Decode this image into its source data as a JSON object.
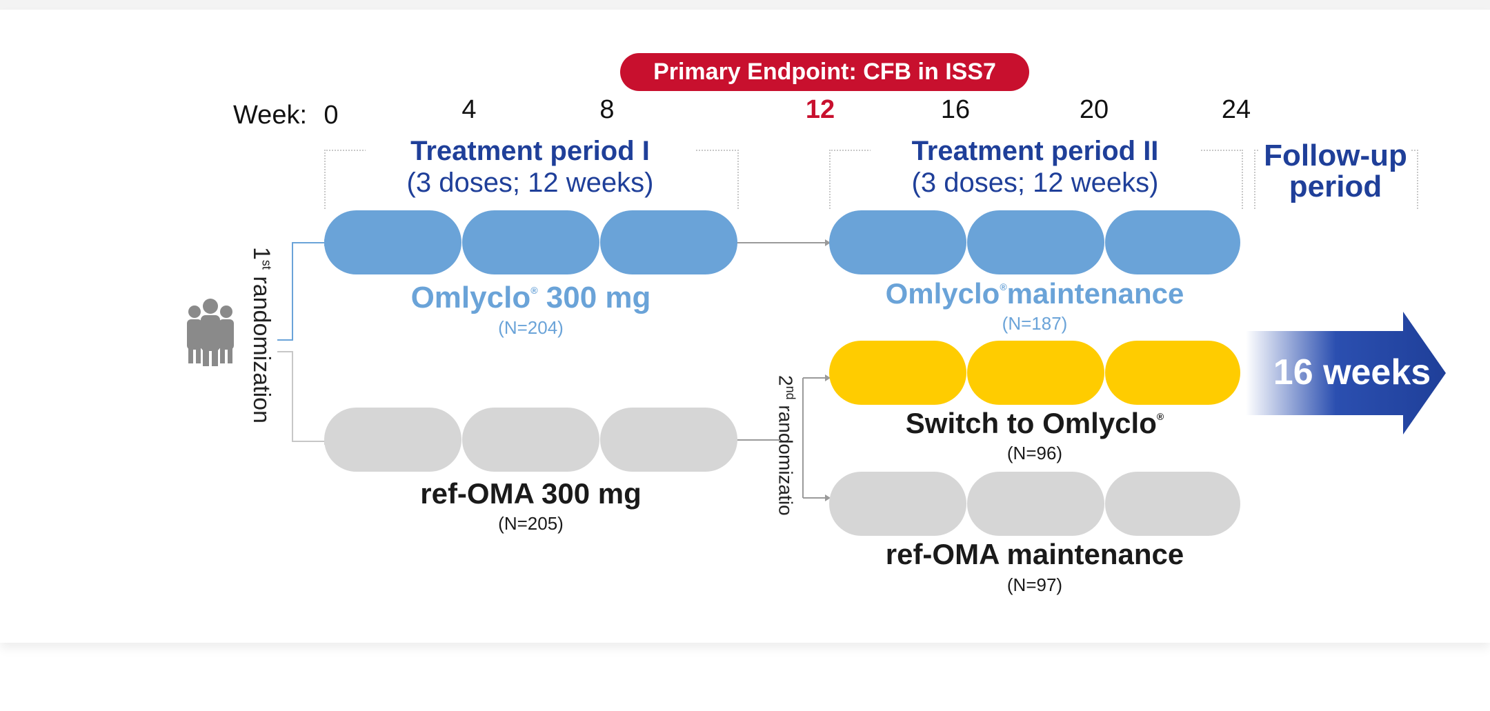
{
  "endpoint": {
    "label": "Primary Endpoint: CFB in ISS7"
  },
  "timeline": {
    "week_label": "Week:",
    "weeks": [
      "0",
      "4",
      "8",
      "12",
      "16",
      "20",
      "24"
    ]
  },
  "periods": {
    "p1": {
      "title": "Treatment period I",
      "sub": "(3 doses; 12 weeks)"
    },
    "p2": {
      "title": "Treatment period II",
      "sub": "(3 doses; 12 weeks)"
    },
    "followup": {
      "line1": "Follow-up",
      "line2": "period"
    }
  },
  "randomization": {
    "first": {
      "ordinal": "1",
      "sup": "st",
      "word": "randomization"
    },
    "second": {
      "ordinal": "2",
      "sup": "nd",
      "word": "randomizatio"
    }
  },
  "arms": {
    "omlyclo300": {
      "brand": "Omlyclo",
      "reg": "®",
      "dose": "300 mg",
      "n": "(N=204)"
    },
    "refoma300": {
      "name": "ref-OMA 300 mg",
      "n": "(N=205)"
    },
    "omlyclo_maint": {
      "brand": "Omlyclo",
      "reg": "®",
      "rest": "maintenance",
      "n": "(N=187)"
    },
    "switch": {
      "prefix": "Switch to ",
      "brand": "Omlyclo",
      "reg": "®",
      "n": "(N=96)"
    },
    "refoma_maint": {
      "name": "ref-OMA maintenance",
      "n": "(N=97)"
    }
  },
  "followup_arrow": {
    "label": "16 weeks"
  },
  "colors": {
    "accent_red": "#c8102e",
    "navy": "#1f3f99",
    "light_blue": "#6aa3d8",
    "grey": "#d6d6d6",
    "yellow": "#ffcc00"
  }
}
